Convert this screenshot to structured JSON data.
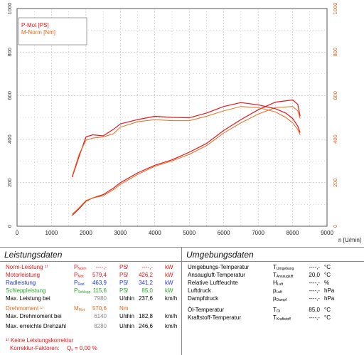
{
  "chart_data": {
    "type": "line",
    "x_label": "n [U/min]",
    "x_ticks": [
      "0",
      "1000",
      "2000",
      "3000",
      "4000",
      "5000",
      "6000",
      "7000",
      "8000",
      "9000"
    ],
    "y_left_ticks": [
      "0",
      "200",
      "400",
      "600",
      "800",
      "1000"
    ],
    "y_right_ticks": [
      "0",
      "200",
      "400",
      "600",
      "800",
      "1000"
    ],
    "xlim": [
      0,
      9000
    ],
    "ylim": [
      0,
      1000
    ],
    "grid": true,
    "legend": {
      "position": "top-left",
      "entries": [
        "P-Mot [PS]",
        "M-Norm [Nm]"
      ]
    },
    "colors": {
      "red": "#e8141a",
      "orange": "#e86a1a"
    },
    "series": [
      {
        "name": "P-Mot [PS]",
        "color": "#e8141a",
        "width": 1.2,
        "x": [
          1600,
          1800,
          2000,
          2200,
          2500,
          2800,
          3000,
          3500,
          4000,
          4500,
          5000,
          5500,
          6000,
          6500,
          7000,
          7500,
          8000,
          8150,
          8220
        ],
        "y": [
          50,
          80,
          115,
          130,
          145,
          175,
          200,
          245,
          280,
          305,
          340,
          380,
          440,
          490,
          535,
          570,
          580,
          560,
          505
        ]
      },
      {
        "name": "",
        "color": "#e86a1a",
        "width": 1.0,
        "x": [
          1600,
          1800,
          2000,
          2200,
          2500,
          2800,
          3000,
          3500,
          4000,
          4500,
          5000,
          5500,
          6000,
          6500,
          7000,
          7500,
          8000,
          8150,
          8220
        ],
        "y": [
          55,
          85,
          118,
          130,
          140,
          168,
          192,
          238,
          275,
          300,
          330,
          370,
          428,
          475,
          515,
          545,
          550,
          530,
          495
        ]
      },
      {
        "name": "M-Norm [Nm]",
        "color": "#e8141a",
        "width": 1.2,
        "x": [
          1600,
          1800,
          2000,
          2200,
          2500,
          2800,
          3000,
          3500,
          4000,
          4500,
          5000,
          5500,
          6000,
          6500,
          7000,
          7500,
          7800,
          8000,
          8150,
          8220
        ],
        "y": [
          225,
          320,
          410,
          420,
          415,
          445,
          470,
          490,
          505,
          500,
          498,
          520,
          550,
          568,
          558,
          540,
          520,
          495,
          460,
          430
        ]
      },
      {
        "name": "",
        "color": "#e86a1a",
        "width": 1.0,
        "x": [
          1600,
          1800,
          2000,
          2200,
          2500,
          2800,
          3000,
          3500,
          4000,
          4500,
          5000,
          5500,
          6000,
          6500,
          7000,
          7500,
          7800,
          8000,
          8150,
          8220
        ],
        "y": [
          230,
          330,
          395,
          405,
          410,
          425,
          455,
          480,
          490,
          485,
          485,
          505,
          530,
          550,
          545,
          525,
          500,
          475,
          445,
          420
        ]
      }
    ]
  },
  "leistungsdaten": {
    "title": "Leistungsdaten",
    "rows": [
      {
        "label": "Norm-Leistung ¹⁾",
        "sym": "P",
        "sub": "Norm",
        "v1": "----,-",
        "u1": "PS",
        "sl": "/",
        "v2": "----,-",
        "u2": "kW",
        "color": "red"
      },
      {
        "label": "Motorleistung",
        "sym": "P",
        "sub": "Mot",
        "v1": "579,4",
        "u1": "PS",
        "sl": "/",
        "v2": "426,2",
        "u2": "kW",
        "color": "red"
      },
      {
        "label": "Radleistung",
        "sym": "P",
        "sub": "Rad",
        "v1": "463,9",
        "u1": "PS",
        "sl": "/",
        "v2": "341,2",
        "u2": "kW",
        "color": "blue"
      },
      {
        "label": "Schleppleistung",
        "sym": "P",
        "sub": "Schlepp",
        "v1": "115,6",
        "u1": "PS",
        "sl": "/",
        "v2": "85,0",
        "u2": "kW",
        "color": "green"
      },
      {
        "label": "Max. Leistung bei",
        "sym": "",
        "sub": "",
        "v1": "7980",
        "u1": "U/min",
        "sl": "/",
        "v2": "237,6",
        "u2": "km/h",
        "color": ""
      },
      {
        "label": "Drehmoment ¹⁾",
        "sym": "M",
        "sub": "Mot",
        "v1": "570,6",
        "u1": "Nm",
        "sl": "",
        "v2": "",
        "u2": "",
        "color": "orange"
      },
      {
        "label": "Max. Drehmoment bei",
        "sym": "",
        "sub": "",
        "v1": "6140",
        "u1": "U/min",
        "sl": "/",
        "v2": "182,8",
        "u2": "km/h",
        "color": ""
      },
      {
        "label": "Max. erreichte Drehzahl",
        "sym": "",
        "sub": "",
        "v1": "8280",
        "u1": "U/min",
        "sl": "/",
        "v2": "246,6",
        "u2": "km/h",
        "color": ""
      }
    ],
    "footnote": "¹⁾ Keine Leistungskorrektur",
    "korrektur_label": "Korrektur-Faktoren:",
    "korrektur_sym": "Q",
    "korrektur_sub": "v",
    "korrektur_value": "=   0,00 %"
  },
  "umgebungsdaten": {
    "title": "Umgebungsdaten",
    "rows": [
      {
        "label": "Umgebungs-Temperatur",
        "sym": "T",
        "sub": "Umgebung",
        "value": "----,-",
        "unit": "°C"
      },
      {
        "label": "Ansaugluft-Temperatur",
        "sym": "T",
        "sub": "Ansaugluft",
        "value": "20,0",
        "unit": "°C"
      },
      {
        "label": "Relative Luftfeuchte",
        "sym": "H",
        "sub": "Luft",
        "value": "----,-",
        "unit": "%"
      },
      {
        "label": "Luftdruck",
        "sym": "p",
        "sub": "Luft",
        "value": "----,-",
        "unit": "hPa"
      },
      {
        "label": "Dampfdruck",
        "sym": "p",
        "sub": "Dampf",
        "value": "----,-",
        "unit": "hPa"
      },
      {
        "label": "Öl-Temperatur",
        "sym": "T",
        "sub": "Öl",
        "value": "85,0",
        "unit": "°C"
      },
      {
        "label": "Kraftstoff-Temperatur",
        "sym": "T",
        "sub": "Kraftstoff",
        "value": "----,-",
        "unit": "°C"
      }
    ]
  }
}
